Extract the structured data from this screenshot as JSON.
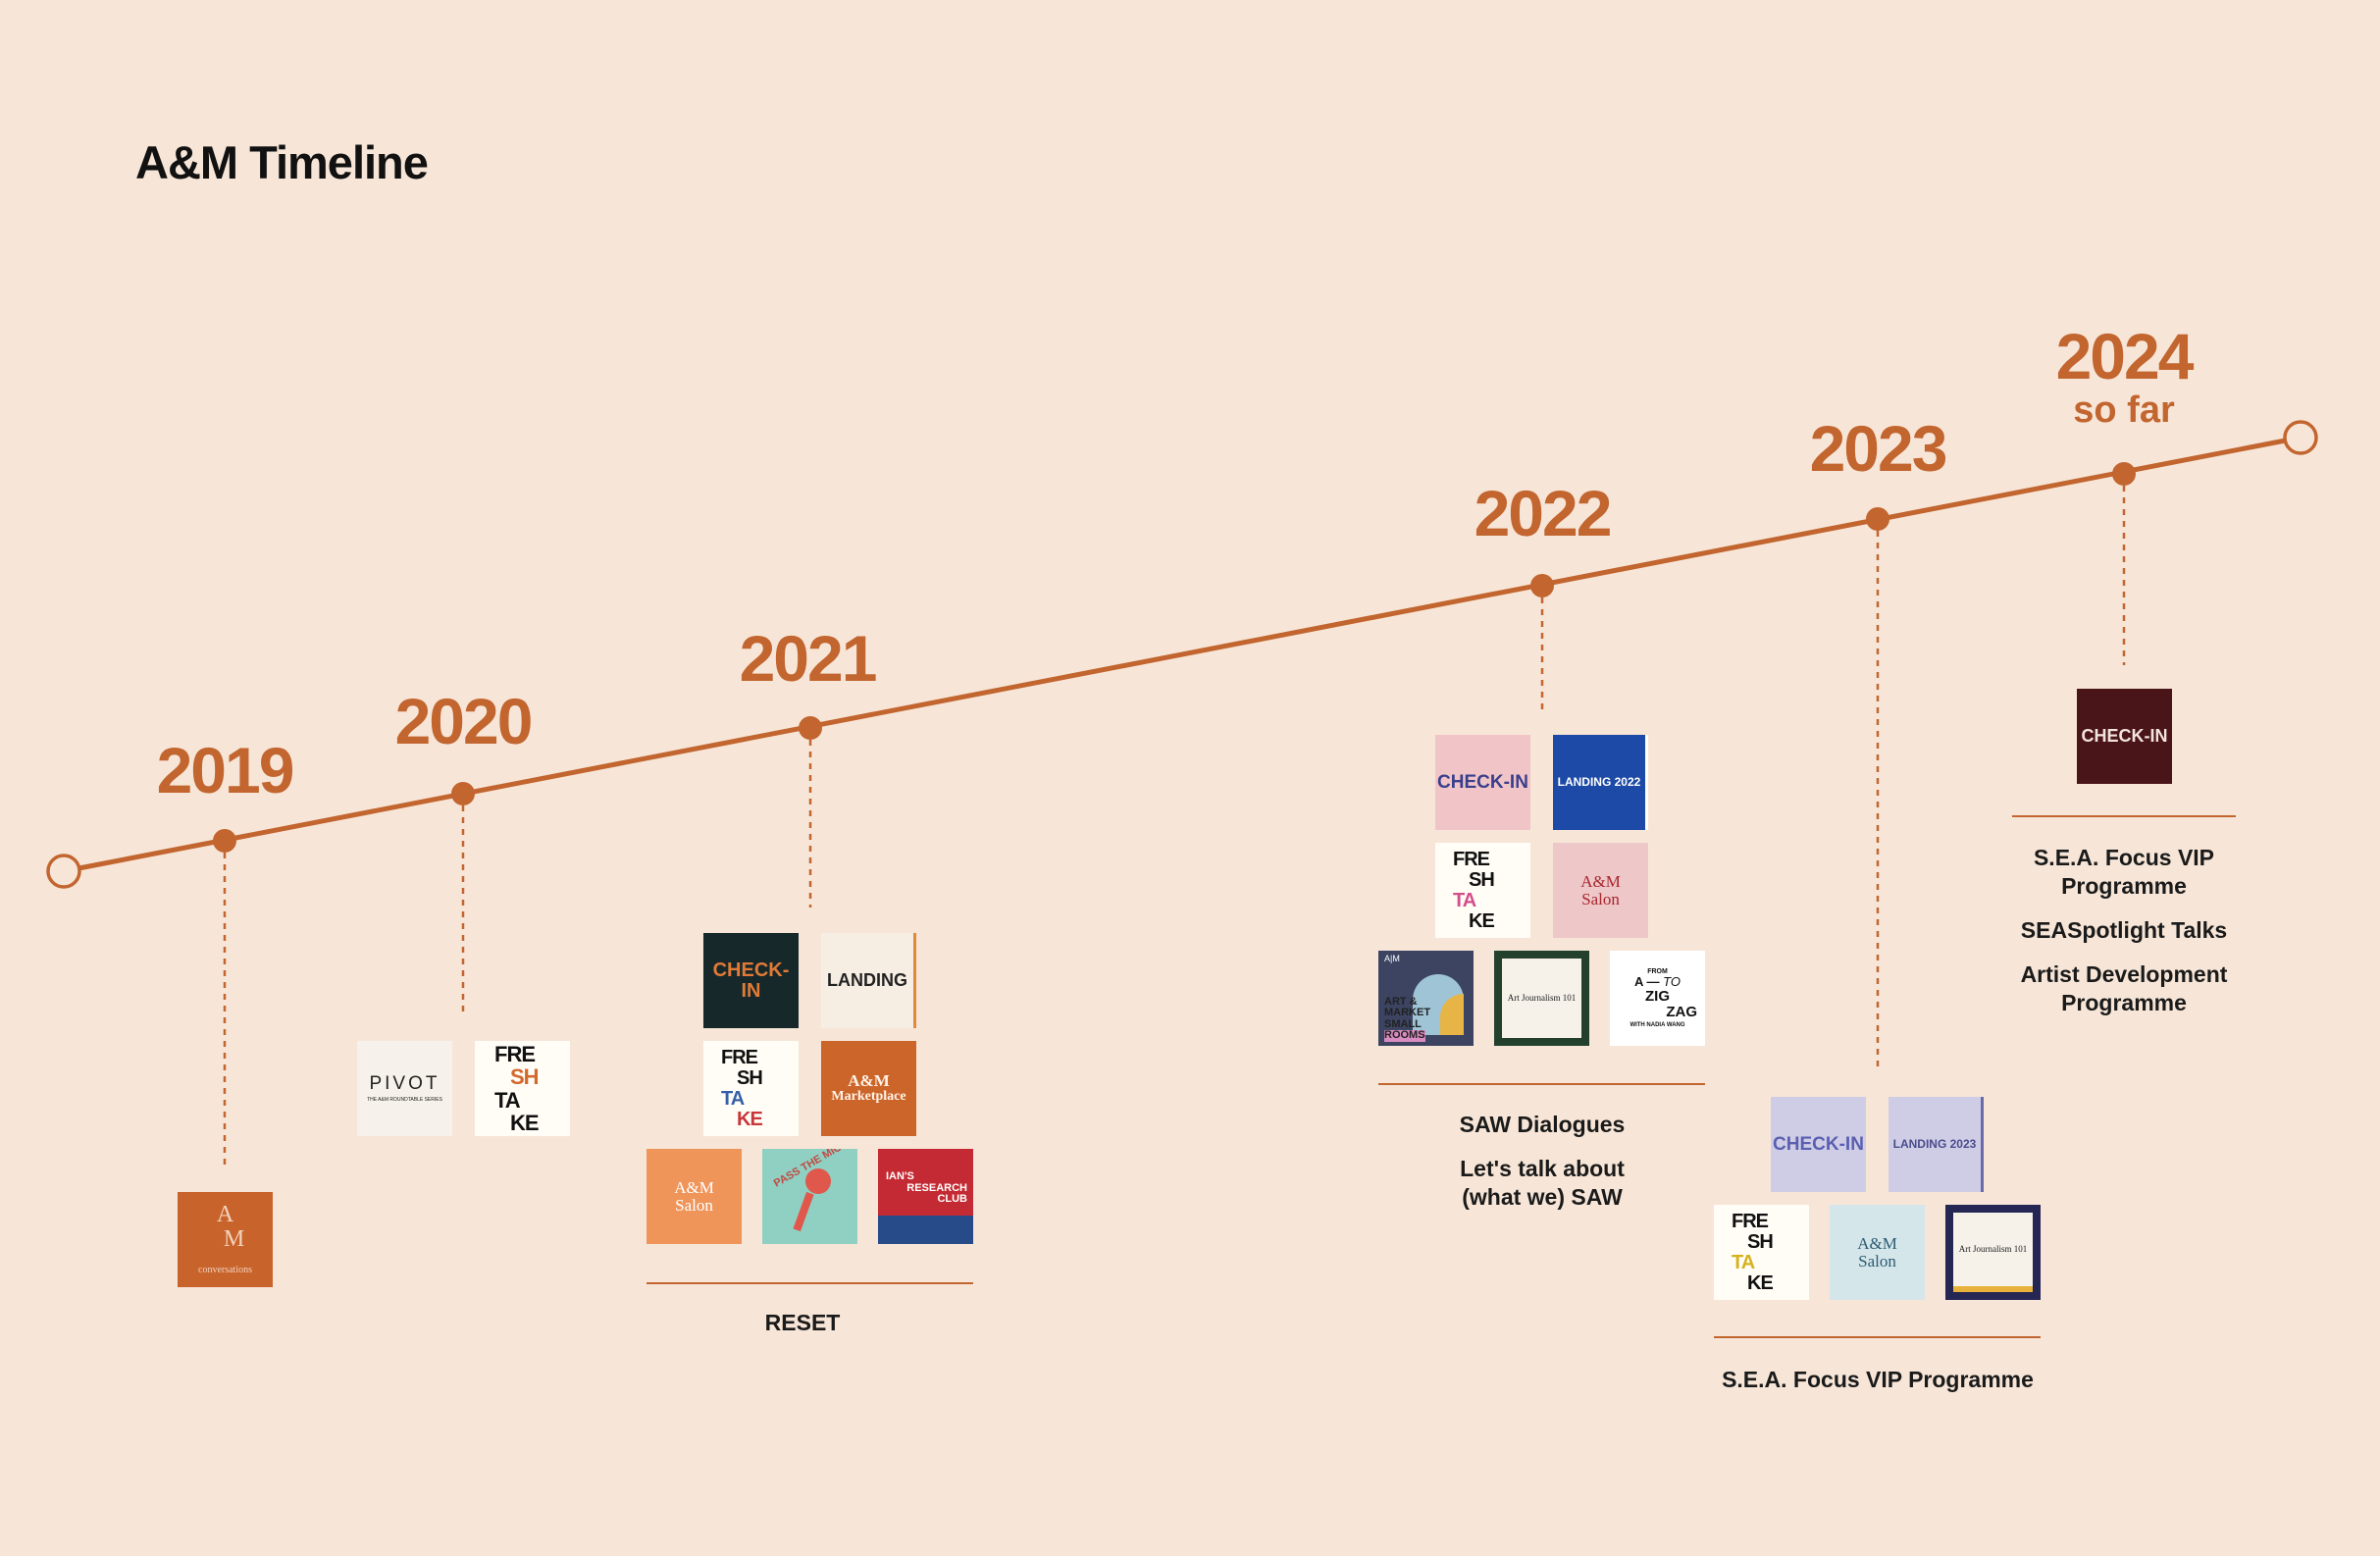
{
  "title": "A&M Timeline",
  "colors": {
    "background": "#f7e6d8",
    "accent": "#c2652f",
    "text": "#111111"
  },
  "milestones": [
    {
      "year": "2019",
      "sub": ""
    },
    {
      "year": "2020",
      "sub": ""
    },
    {
      "year": "2021",
      "sub": ""
    },
    {
      "year": "2022",
      "sub": ""
    },
    {
      "year": "2023",
      "sub": ""
    },
    {
      "year": "2024",
      "sub": "so far"
    }
  ],
  "tiles": {
    "t2019": {
      "line1": "A",
      "line2": "M",
      "caption": "conversations"
    },
    "pivot": {
      "title": "PIVOT",
      "small": "THE A&M ROUNDTABLE SERIES"
    },
    "freshtake": {
      "l1": "FRE",
      "l2": "SH",
      "l3": "TA",
      "l4": "KE"
    },
    "checkin": "CHECK-IN",
    "landing": "LANDING",
    "landing2022": "LANDING 2022",
    "landing2023": "LANDING 2023",
    "marketplace": {
      "l1": "A&M",
      "l2": "Marketplace"
    },
    "salon": {
      "l1": "A&M",
      "l2": "Salon"
    },
    "passthemic": "PASS THE MIC",
    "research": {
      "l1": "IAN'S",
      "l2": "RESEARCH",
      "l3": "CLUB"
    },
    "artmarket": {
      "mark": "A|M",
      "l1": "ART &",
      "l2": "MARKET",
      "l3": "SMALL",
      "l4": "ROOMS"
    },
    "artjournalism": "Art Journalism 101",
    "zigzag": {
      "l1": "FROM",
      "l2": "A",
      "l3": "TO",
      "l4": "ZIG",
      "l5": "ZAG",
      "l6": "WITH NADIA WANG"
    }
  },
  "captions": {
    "c2021": [
      "RESET"
    ],
    "c2022": [
      "SAW Dialogues",
      "Let's talk about (what we) SAW"
    ],
    "c2023": [
      "S.E.A. Focus VIP Programme"
    ],
    "c2024": [
      "S.E.A. Focus VIP Programme",
      "SEASpotlight Talks",
      "Artist Development Programme"
    ]
  }
}
